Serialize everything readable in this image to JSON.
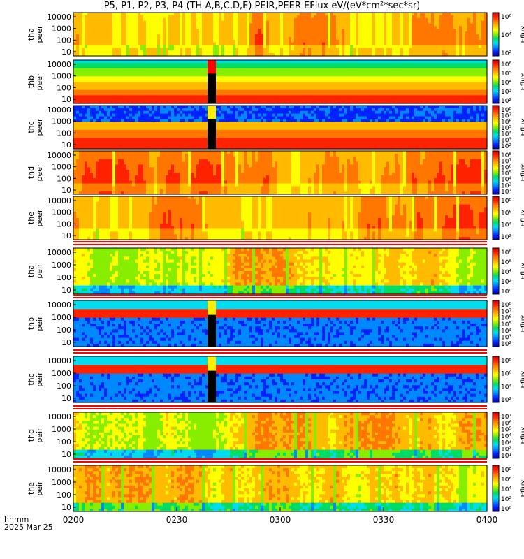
{
  "chart_data": {
    "type": "heatmap",
    "title": "P5, P1, P2, P3, P4 (TH-A,B,C,D,E) PEIR,PEER EFlux eV/(eV*cm²*sec*sr)",
    "x_axis": {
      "label": "hhmm",
      "date": "2025 Mar 25",
      "range": [
        "0200",
        "0400"
      ],
      "ticks": [
        "0200",
        "0230",
        "0300",
        "0330",
        "0400"
      ]
    },
    "y_scale": "log",
    "panels": [
      {
        "probe": "tha",
        "species": "peer",
        "ylabel": [
          "tha",
          "peer"
        ],
        "yticks": [
          "10000",
          "1000",
          "100",
          "10"
        ],
        "colorbar_label": "Eflux",
        "colorbar_ticks": [
          "10⁶",
          "10⁴",
          "10²"
        ],
        "state": "mixed red/orange, yellow at low energy, black lower boundary"
      },
      {
        "probe": "thb",
        "species": "peer",
        "ylabel": [
          "thb",
          "peer"
        ],
        "yticks": [
          "10000",
          "1000",
          "100",
          "10"
        ],
        "colorbar_label": "Eflux",
        "colorbar_ticks": [
          "10⁶",
          "10⁵",
          "10⁴",
          "10³",
          "10²"
        ],
        "state": "smooth horizontal bands, data gap near 0240"
      },
      {
        "probe": "thc",
        "species": "peer",
        "ylabel": [
          "thc",
          "peer"
        ],
        "yticks": [
          "10000",
          "1000",
          "100",
          "10"
        ],
        "colorbar_label": "Eflux",
        "colorbar_ticks": [
          "10⁸",
          "10⁷",
          "10⁶",
          "10⁵",
          "10⁴",
          "10³",
          "10²"
        ],
        "state": "blue at high energy, red bands below, data gap near 0240"
      },
      {
        "probe": "thd",
        "species": "peer",
        "ylabel": [
          "thd",
          "peer"
        ],
        "yticks": [
          "10000",
          "1000",
          "100",
          "10"
        ],
        "colorbar_label": "Eflux",
        "colorbar_ticks": [
          "10⁸",
          "10⁷",
          "10⁶",
          "10⁵",
          "10⁴",
          "10³",
          "10²"
        ],
        "state": "mostly red with yellow dropouts, black lower boundary"
      },
      {
        "probe": "the",
        "species": "peer",
        "ylabel": [
          "the",
          "peer"
        ],
        "yticks": [
          "10000",
          "1000",
          "100",
          "10"
        ],
        "colorbar_label": "Eflux",
        "colorbar_ticks": [
          "10⁸",
          "10⁶",
          "10⁴",
          "10²"
        ],
        "state": "red/orange with yellow dropouts"
      },
      {
        "probe": "tha",
        "species": "peir",
        "ylabel": [
          "tha",
          "peir"
        ],
        "yticks": [
          "10000",
          "1000",
          "100",
          "10"
        ],
        "colorbar_label": "Eflux",
        "colorbar_ticks": [
          "10⁸",
          "10⁶",
          "10⁴",
          "10²",
          "10⁰"
        ],
        "state": "green/yellow, orange patches 0255-0338, blue at low energy"
      },
      {
        "probe": "thb",
        "species": "peir",
        "ylabel": [
          "thb",
          "peir"
        ],
        "yticks": [
          "10000",
          "1000",
          "100",
          "10"
        ],
        "colorbar_label": "Eflux",
        "colorbar_ticks": [
          "10⁸",
          "10⁷",
          "10⁶",
          "10⁵",
          "10⁴",
          "10³",
          "10²"
        ],
        "state": "blue background with red band near 1 keV, data gap near 0240"
      },
      {
        "probe": "thc",
        "species": "peir",
        "ylabel": [
          "thc",
          "peir"
        ],
        "yticks": [
          "10000",
          "1000",
          "100",
          "10"
        ],
        "colorbar_label": "Eflux",
        "colorbar_ticks": [
          "10⁸",
          "10⁶",
          "10⁴",
          "10²"
        ],
        "state": "blue/cyan with red band near 1 keV, data gap near 0240"
      },
      {
        "probe": "thd",
        "species": "peir",
        "ylabel": [
          "thd",
          "peir"
        ],
        "yticks": [
          "10000",
          "1000",
          "100",
          "10"
        ],
        "colorbar_label": "Eflux",
        "colorbar_ticks": [
          "10⁷",
          "10⁶",
          "10⁵",
          "10⁴",
          "10³",
          "10²",
          "10¹"
        ],
        "state": "green/yellow with orange bursts"
      },
      {
        "probe": "the",
        "species": "peir",
        "ylabel": [
          "the",
          "peir"
        ],
        "yticks": [
          "10000",
          "1000",
          "100",
          "10"
        ],
        "colorbar_label": "Eflux",
        "colorbar_ticks": [
          "10⁸",
          "10⁶",
          "10⁴",
          "10²",
          "10⁰"
        ],
        "state": "green/yellow with orange bursts"
      }
    ],
    "colormap": [
      "#0000aa",
      "#0022ff",
      "#0088ff",
      "#00ddee",
      "#00dd66",
      "#88ee00",
      "#ffff00",
      "#ffbb00",
      "#ff7700",
      "#ff2200",
      "#cc0000"
    ]
  }
}
